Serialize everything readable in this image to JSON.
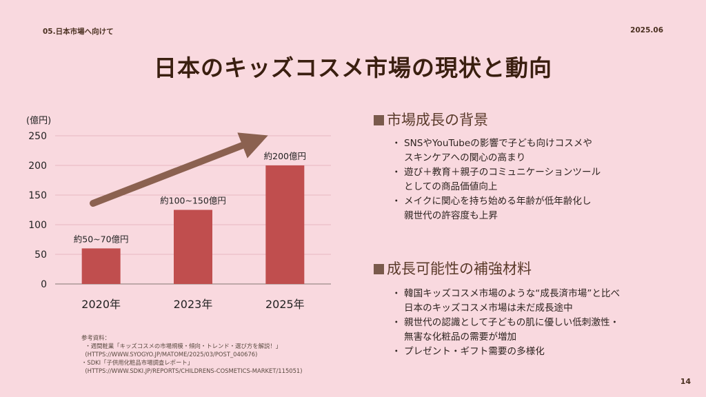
{
  "header": {
    "section_label": "05.日本市場へ向けて",
    "date": "2025.06",
    "title": "日本のキッズコスメ市場の現状と動向"
  },
  "chart_data": {
    "type": "bar",
    "categories": [
      "2020年",
      "2023年",
      "2025年"
    ],
    "values": [
      60,
      125,
      200
    ],
    "data_labels": [
      "約50~70億円",
      "約100~150億円",
      "約200億円"
    ],
    "unit_label": "(億円)",
    "ylim": [
      0,
      250
    ],
    "yticks": [
      0,
      50,
      100,
      150,
      200,
      250
    ],
    "bar_color": "#c04e4e",
    "arrow_color": "#8b6150"
  },
  "background": {
    "heading": "市場成長の背景",
    "items": [
      "SNSやYouTubeの影響で子ども向けコスメや\nスキンケアへの関心の高まり",
      "遊び＋教育＋親子のコミュニケーションツール\nとしての商品価値向上",
      "メイクに関心を持ち始める年齢が低年齢化し\n親世代の許容度も上昇"
    ]
  },
  "potential": {
    "heading": "成長可能性の補強材料",
    "items": [
      "韓国キッズコスメ市場のような“成長済市場”と比べ\n日本のキッズコスメ市場は未だ成長途中",
      "親世代の認識として子どもの肌に優しい低刺激性・\n無害な化粧品の需要が増加",
      "プレゼント・ギフト需要の多様化"
    ]
  },
  "references": {
    "label": "参考資料：",
    "items": [
      "・週間粧業「キッズコスメの市場規模・傾向・トレンド・選び方を解説！」",
      "(HTTPS://WWW.SYOGYO.JP/MATOME/2025/03/POST_040676)",
      "・SDKI「子供用化粧品市場調査レポート」",
      "(HTTPS://WWW.SDKI.JP/REPORTS/CHILDRENS-COSMETICS-MARKET/115051)"
    ]
  },
  "page_number": "14"
}
